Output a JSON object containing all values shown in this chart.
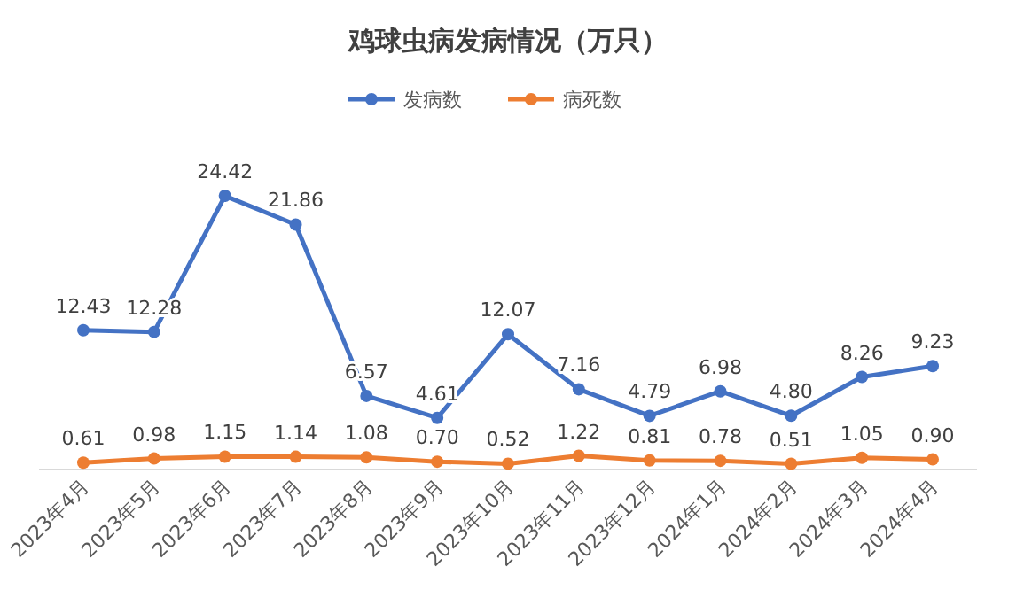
{
  "chart_data": {
    "type": "line",
    "title": "鸡球虫病发病情况（万只）",
    "categories": [
      "2023年4月",
      "2023年5月",
      "2023年6月",
      "2023年7月",
      "2023年8月",
      "2023年9月",
      "2023年10月",
      "2023年11月",
      "2023年12月",
      "2024年1月",
      "2024年2月",
      "2024年3月",
      "2024年4月"
    ],
    "series": [
      {
        "name": "发病数",
        "color": "#4472c4",
        "values": [
          12.43,
          12.28,
          24.42,
          21.86,
          6.57,
          4.61,
          12.07,
          7.16,
          4.79,
          6.98,
          4.8,
          8.26,
          9.23
        ],
        "value_labels": [
          "12.43",
          "12.28",
          "24.42",
          "21.86",
          "6.57",
          "4.61",
          "12.07",
          "7.16",
          "4.79",
          "6.98",
          "4.80",
          "8.26",
          "9.23"
        ]
      },
      {
        "name": "病死数",
        "color": "#ed7d31",
        "values": [
          0.61,
          0.98,
          1.15,
          1.14,
          1.08,
          0.7,
          0.52,
          1.22,
          0.81,
          0.78,
          0.51,
          1.05,
          0.9
        ],
        "value_labels": [
          "0.61",
          "0.98",
          "1.15",
          "1.14",
          "1.08",
          "0.70",
          "0.52",
          "1.22",
          "0.81",
          "0.78",
          "0.51",
          "1.05",
          "0.90"
        ]
      }
    ],
    "legend": "top",
    "marker": "circle",
    "line_style": "solid"
  }
}
